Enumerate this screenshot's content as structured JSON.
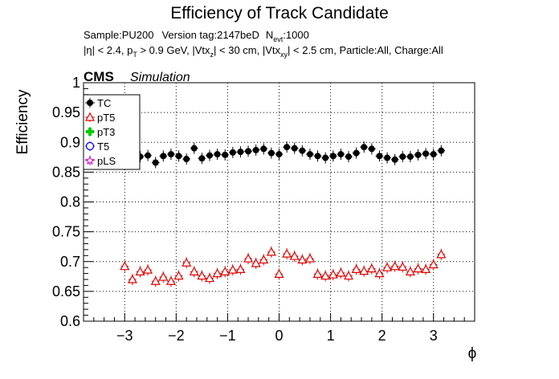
{
  "chart_data": {
    "type": "scatter",
    "title": "Efficiency of Track Candidate",
    "subtitle_line1": {
      "sample": "Sample:PU200",
      "version": "Version tag:2147beD",
      "nevt_main": "N",
      "nevt_sub": "evt",
      "nevt_value": ":1000"
    },
    "subtitle_line2": {
      "eta": "|η| < 2.4, p",
      "pt_sub": "T",
      "pt_cut": " > 0.9 GeV, |Vtx",
      "z_sub": "z",
      "z_cut": "| < 30 cm, |Vtx",
      "xy_sub": "xy",
      "xy_cut": "| < 2.5 cm, Particle:All, Charge:All"
    },
    "cms_label": "CMS",
    "simulation_label": "Simulation",
    "xlabel": "ϕ",
    "ylabel": "Efficiency",
    "xlim": [
      -3.8,
      3.8
    ],
    "ylim": [
      0.6,
      1.0
    ],
    "x_ticks": [
      "−3",
      "−2",
      "−1",
      "0",
      "1",
      "2",
      "3"
    ],
    "x_tick_values": [
      -3,
      -2,
      -1,
      0,
      1,
      2,
      3
    ],
    "y_ticks": [
      "0.6",
      "0.65",
      "0.7",
      "0.75",
      "0.8",
      "0.85",
      "0.9",
      "0.95",
      "1"
    ],
    "y_tick_values": [
      0.6,
      0.65,
      0.7,
      0.75,
      0.8,
      0.85,
      0.9,
      0.95,
      1.0
    ],
    "grid": true,
    "legend_position": "top-left",
    "x": [
      -3.0,
      -2.85,
      -2.7,
      -2.55,
      -2.4,
      -2.25,
      -2.1,
      -1.95,
      -1.8,
      -1.65,
      -1.5,
      -1.35,
      -1.2,
      -1.05,
      -0.9,
      -0.75,
      -0.6,
      -0.45,
      -0.3,
      -0.15,
      0.0,
      0.15,
      0.3,
      0.45,
      0.6,
      0.75,
      0.9,
      1.05,
      1.2,
      1.35,
      1.5,
      1.65,
      1.8,
      1.95,
      2.1,
      2.25,
      2.4,
      2.55,
      2.7,
      2.85,
      3.0,
      3.15
    ],
    "series": [
      {
        "name": "TC",
        "color": "#000000",
        "marker": "filled-circle",
        "values": [
          0.868,
          0.876,
          0.876,
          0.878,
          0.866,
          0.877,
          0.88,
          0.877,
          0.872,
          0.89,
          0.873,
          0.878,
          0.88,
          0.879,
          0.883,
          0.884,
          0.885,
          0.887,
          0.889,
          0.882,
          0.88,
          0.892,
          0.89,
          0.886,
          0.88,
          0.877,
          0.874,
          0.877,
          0.88,
          0.876,
          0.882,
          0.892,
          0.889,
          0.877,
          0.874,
          0.871,
          0.876,
          0.876,
          0.879,
          0.881,
          0.88,
          0.886
        ]
      },
      {
        "name": "pT5",
        "color": "#e00000",
        "marker": "open-triangle",
        "values": [
          0.692,
          0.67,
          0.683,
          0.686,
          0.667,
          0.674,
          0.667,
          0.676,
          0.698,
          0.683,
          0.676,
          0.672,
          0.68,
          0.683,
          0.686,
          0.687,
          0.705,
          0.697,
          0.703,
          0.716,
          0.679,
          0.713,
          0.709,
          0.703,
          0.705,
          0.679,
          0.676,
          0.678,
          0.681,
          0.676,
          0.687,
          0.684,
          0.688,
          0.68,
          0.69,
          0.692,
          0.691,
          0.683,
          0.688,
          0.687,
          0.695,
          0.712
        ]
      },
      {
        "name": "pT3",
        "color": "#00cc00",
        "marker": "cross",
        "values": []
      },
      {
        "name": "T5",
        "color": "#0000ff",
        "marker": "open-circle",
        "values": []
      },
      {
        "name": "pLS",
        "color": "#cc00cc",
        "marker": "open-star",
        "values": []
      }
    ]
  }
}
